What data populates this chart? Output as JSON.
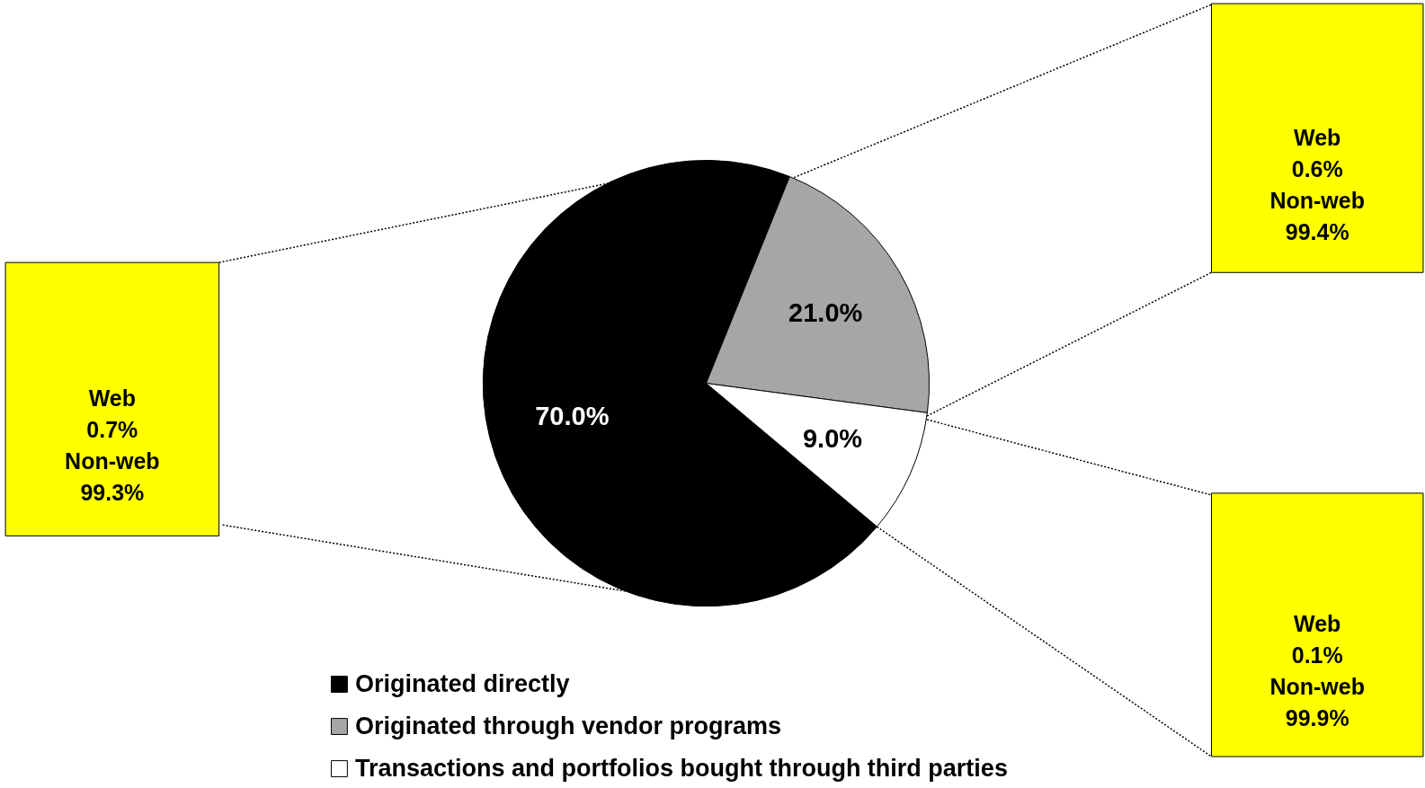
{
  "chart_data": {
    "type": "pie",
    "categories": [
      "Originated directly",
      "Originated through vendor programs",
      "Transactions and portfolios bought through third parties"
    ],
    "values": [
      70.0,
      21.0,
      9.0
    ],
    "colors": [
      "#000000",
      "#a6a6a6",
      "#ffffff"
    ],
    "value_labels": [
      "70.0%",
      "21.0%",
      "9.0%"
    ],
    "annotations": [
      "Web\n0.7%\n\nNon-web\n99.3%",
      "Web\n0.6%\n\nNon-web\n99.4%",
      "Web\n0.1%\n\nNon-web\n99.9%"
    ],
    "legend": "bottom"
  }
}
